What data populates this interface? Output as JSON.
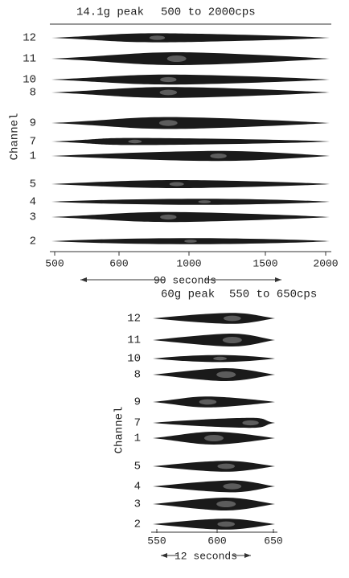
{
  "top_panel": {
    "title": "14.1g peak",
    "range": "500 to 2000cps",
    "y_axis_label": "Channel",
    "channels": [
      "12",
      "11",
      "10",
      "8",
      "9",
      "7",
      "1",
      "5",
      "4",
      "3",
      "2"
    ],
    "x_tick_labels": [
      "500",
      "600",
      "1000",
      "1500",
      "2000"
    ],
    "duration": "90 seconds"
  },
  "bottom_panel": {
    "title": "60g peak",
    "range": "550 to 650cps",
    "y_axis_label": "Channel",
    "channels": [
      "12",
      "11",
      "10",
      "8",
      "9",
      "7",
      "1",
      "5",
      "4",
      "3",
      "2"
    ],
    "x_tick_labels": [
      "550",
      "600",
      "650"
    ],
    "duration": "12 seconds"
  }
}
